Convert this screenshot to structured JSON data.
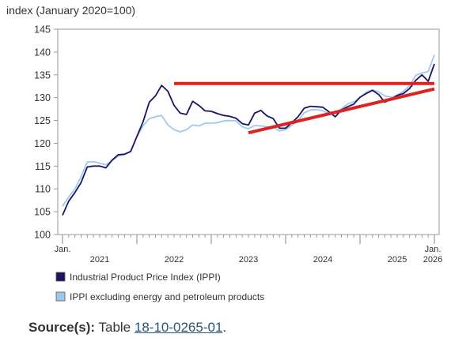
{
  "chart_data": {
    "type": "line",
    "ylabel": "index (January 2020=100)",
    "ylim": [
      100,
      145
    ],
    "yticks": [
      100,
      105,
      110,
      115,
      120,
      125,
      130,
      135,
      140,
      145
    ],
    "grid": false,
    "x_start": "2021-01",
    "x_end": "2026-01",
    "x_corner_labels": {
      "start": "Jan.",
      "end_top": "Jan.",
      "end_bottom": "2026"
    },
    "years": [
      "2021",
      "2022",
      "2023",
      "2024",
      "2025"
    ],
    "legend_position": "bottom",
    "series": [
      {
        "name": "Industrial Product Price Index (IPPI)",
        "color": "#1b1464",
        "values": [
          104.2,
          107.3,
          109.2,
          111.4,
          114.8,
          115.0,
          115.0,
          114.6,
          116.3,
          117.5,
          117.6,
          118.2,
          121.5,
          124.7,
          129.0,
          130.4,
          132.7,
          131.4,
          128.3,
          126.6,
          126.3,
          129.2,
          128.3,
          127.1,
          127.0,
          126.5,
          126.1,
          125.9,
          125.5,
          124.3,
          124.0,
          126.6,
          127.2,
          126.0,
          125.4,
          123.3,
          123.3,
          124.5,
          125.8,
          127.7,
          128.1,
          128.0,
          127.9,
          126.9,
          125.8,
          127.3,
          128.0,
          128.6,
          130.1,
          130.9,
          131.6,
          130.7,
          129.0,
          129.6,
          130.5,
          130.9,
          132.0,
          133.8,
          135.0,
          133.6,
          137.4
        ]
      },
      {
        "name": "IPPI excluding energy and petroleum products",
        "color": "#9ec9ee",
        "values": [
          106.2,
          108.2,
          110.0,
          112.7,
          115.9,
          116.0,
          115.6,
          115.3,
          116.2,
          117.2,
          117.5,
          118.3,
          121.4,
          123.8,
          125.4,
          125.8,
          126.1,
          124.0,
          123.0,
          122.5,
          123.0,
          124.0,
          123.8,
          124.4,
          124.4,
          124.5,
          124.9,
          125.0,
          124.9,
          123.6,
          123.2,
          123.9,
          123.8,
          123.6,
          123.5,
          122.7,
          123.0,
          123.9,
          124.9,
          126.7,
          127.3,
          127.4,
          127.1,
          126.5,
          126.7,
          127.6,
          128.6,
          129.1,
          130.0,
          131.2,
          131.7,
          131.3,
          130.4,
          130.1,
          130.5,
          131.4,
          132.6,
          134.9,
          135.4,
          135.7,
          139.4
        ]
      }
    ],
    "annotations": [
      {
        "type": "line",
        "color": "#dd2222",
        "from": [
          "2022-07",
          133.1
        ],
        "to": [
          "2026-01",
          133.1
        ]
      },
      {
        "type": "line",
        "color": "#dd2222",
        "from": [
          "2023-07",
          122.3
        ],
        "to": [
          "2026-01",
          131.9
        ]
      }
    ]
  },
  "source": {
    "label": "Source(s):",
    "prefix": "Table",
    "link_text": "18-10-0265-01",
    "suffix": "."
  }
}
